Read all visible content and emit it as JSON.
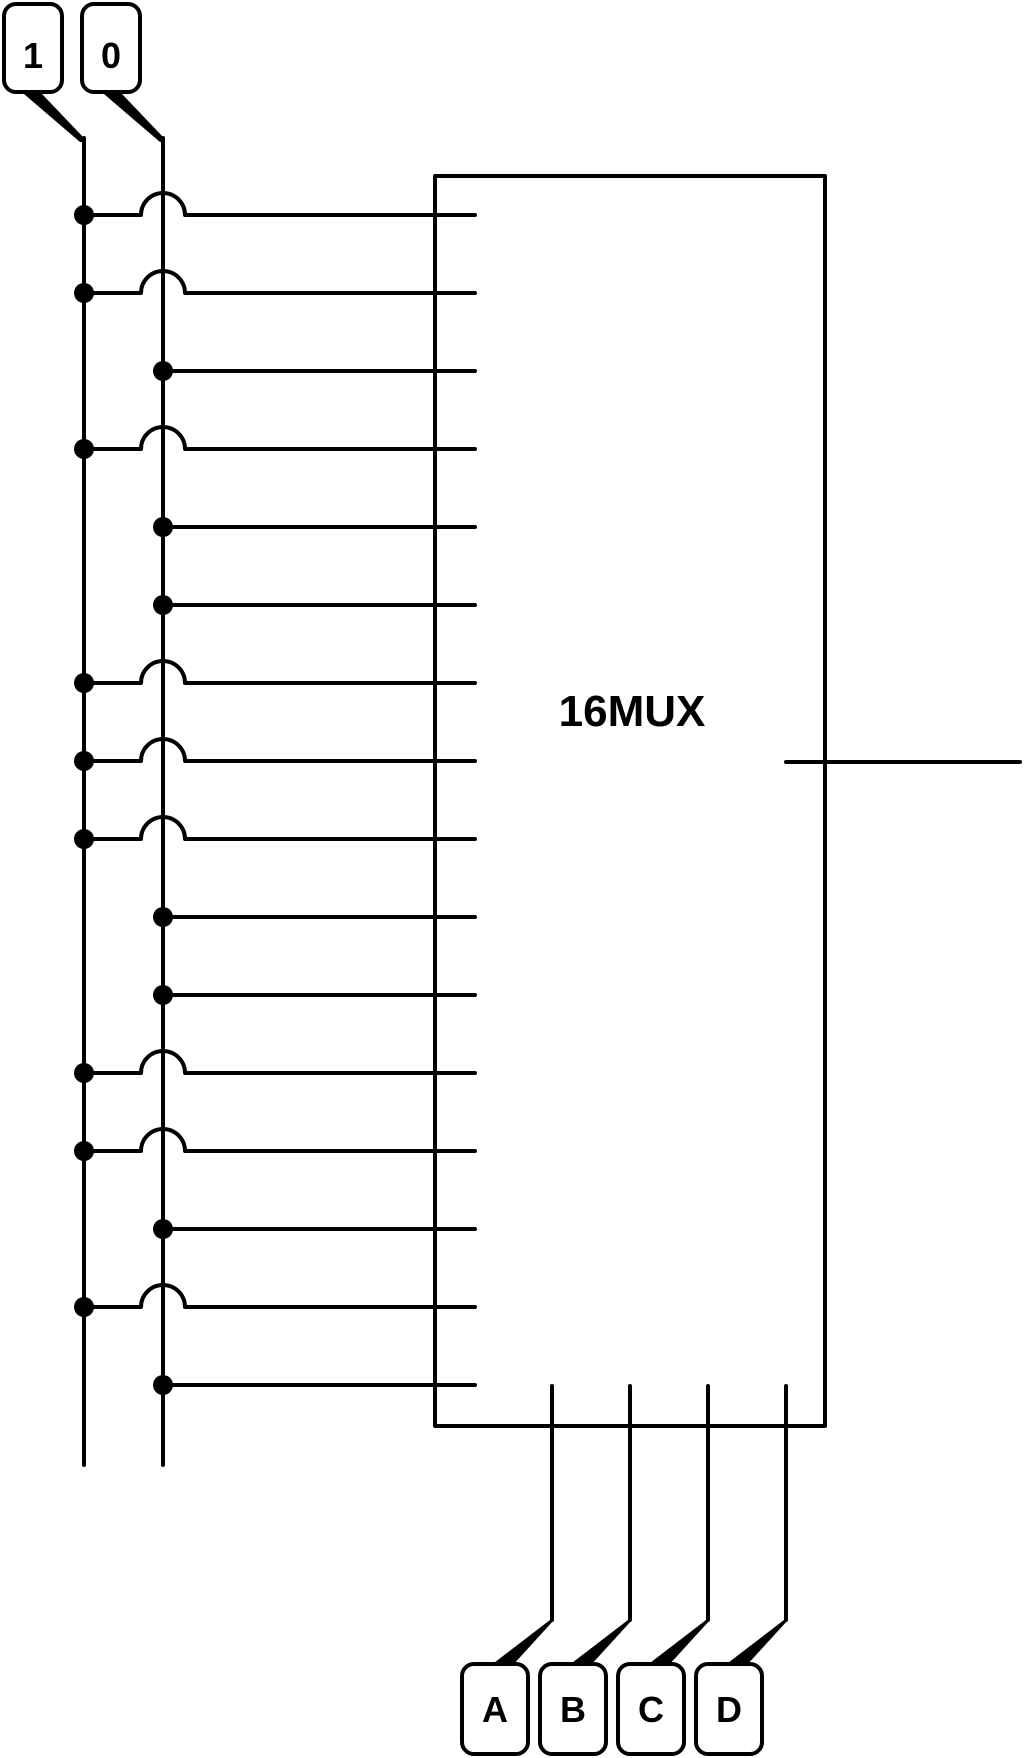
{
  "constant_inputs": [
    {
      "label": "1"
    },
    {
      "label": "0"
    }
  ],
  "mux": {
    "label": "16MUX",
    "data_input_sources": [
      "1",
      "1",
      "0",
      "1",
      "0",
      "0",
      "1",
      "1",
      "1",
      "0",
      "0",
      "1",
      "1",
      "0",
      "1",
      "0"
    ]
  },
  "select_inputs": [
    {
      "label": "A"
    },
    {
      "label": "B"
    },
    {
      "label": "C"
    },
    {
      "label": "D"
    }
  ]
}
